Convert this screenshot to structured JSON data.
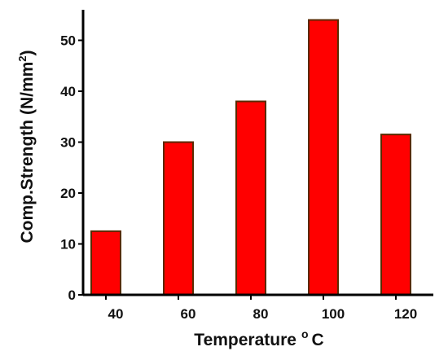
{
  "chart_data": {
    "type": "bar",
    "categories": [
      "40",
      "60",
      "80",
      "100",
      "120"
    ],
    "values": [
      12.5,
      30,
      38,
      54,
      31.5
    ],
    "xlabel": "Temperature",
    "xlabel_suffix": "o",
    "xlabel_unit": "C",
    "ylabel": "Comp.Strength (N/mm",
    "ylabel_sup": "2",
    "ylabel_close": ")",
    "y_ticks": [
      "0",
      "10",
      "20",
      "30",
      "40",
      "50"
    ],
    "ylim": [
      0,
      56
    ],
    "grid": false,
    "legend": "none",
    "colors": {
      "bar_fill": "#ff0000",
      "bar_edge": "#5a2a00",
      "axis": "#000000",
      "text": "#111111"
    }
  }
}
